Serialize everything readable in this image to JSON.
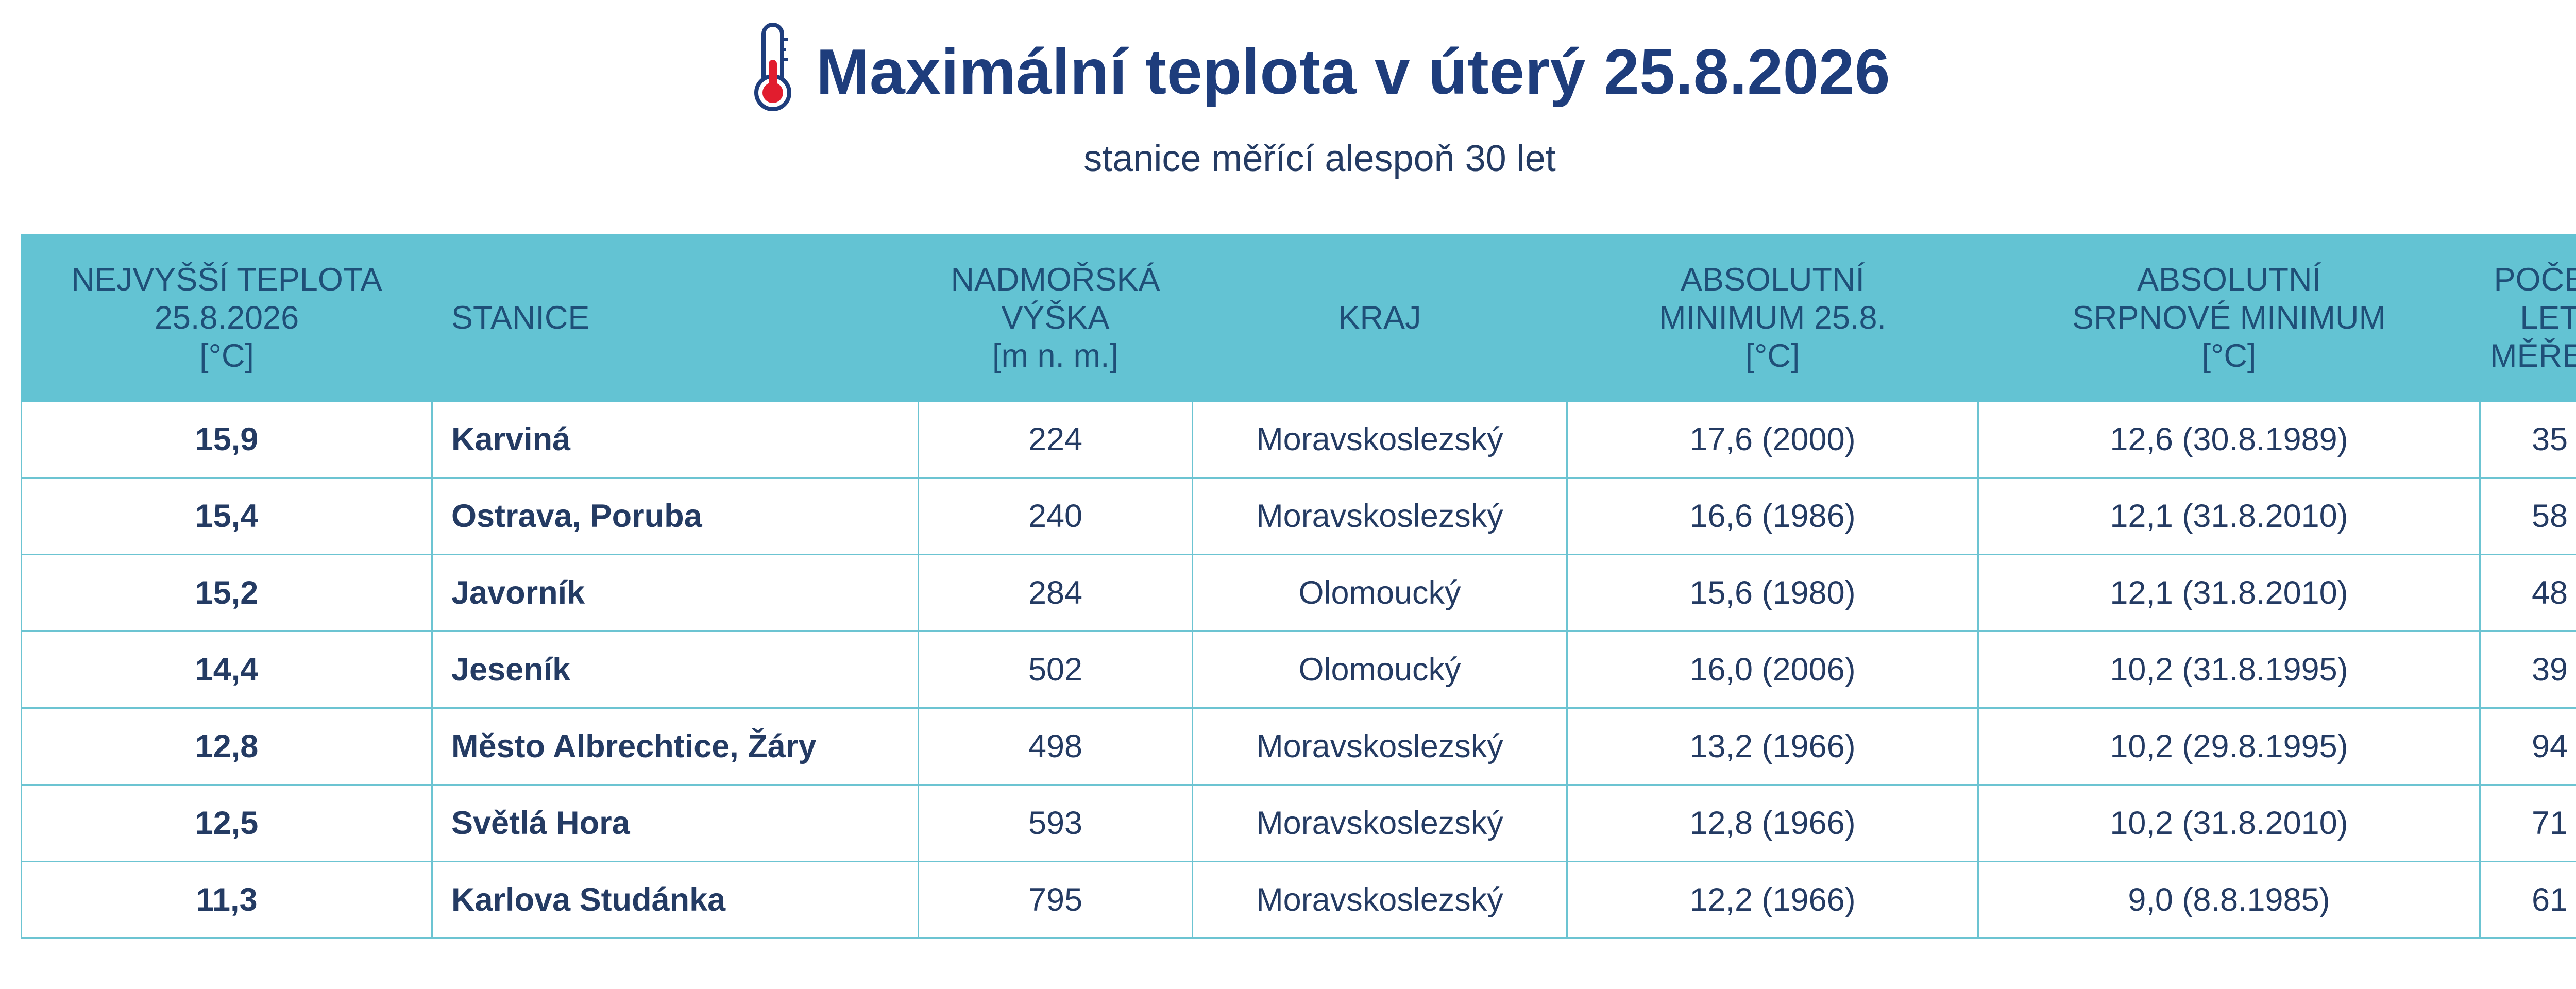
{
  "header": {
    "title": "Maximální teplota v úterý 25.8.2026",
    "subtitle": "stanice měřící alespoň 30 let",
    "icon": "thermometer-icon"
  },
  "table": {
    "headers": [
      [
        "NEJVYŠŠÍ TEPLOTA",
        "25.8.2026",
        "[°C]"
      ],
      [
        "STANICE"
      ],
      [
        "NADMOŘSKÁ",
        "VÝŠKA",
        "[m n. m.]"
      ],
      [
        "KRAJ"
      ],
      [
        "ABSOLUTNÍ",
        "MINIMUM 25.8.",
        "[°C]"
      ],
      [
        "ABSOLUTNÍ",
        "SRPNOVÉ MINIMUM",
        "[°C]"
      ],
      [
        "POČET",
        "LET",
        "MĚŘENÍ"
      ]
    ],
    "rows": [
      [
        "15,9",
        "Karviná",
        "224",
        "Moravskoslezský",
        "17,6 (2000)",
        "12,6 (30.8.1989)",
        "35"
      ],
      [
        "15,4",
        "Ostrava, Poruba",
        "240",
        "Moravskoslezský",
        "16,6 (1986)",
        "12,1 (31.8.2010)",
        "58"
      ],
      [
        "15,2",
        "Javorník",
        "284",
        "Olomoucký",
        "15,6 (1980)",
        "12,1 (31.8.2010)",
        "48"
      ],
      [
        "14,4",
        "Jeseník",
        "502",
        "Olomoucký",
        "16,0 (2006)",
        "10,2 (31.8.1995)",
        "39"
      ],
      [
        "12,8",
        "Město Albrechtice, Žáry",
        "498",
        "Moravskoslezský",
        "13,2 (1966)",
        "10,2 (29.8.1995)",
        "94"
      ],
      [
        "12,5",
        "Světlá Hora",
        "593",
        "Moravskoslezský",
        "12,8 (1966)",
        "10,2 (31.8.2010)",
        "71"
      ],
      [
        "11,3",
        "Karlova Studánka",
        "795",
        "Moravskoslezský",
        "12,2 (1966)",
        "9,0 (8.8.1985)",
        "61"
      ]
    ]
  },
  "colors": {
    "title": "#1e3d7c",
    "text": "#243b63",
    "header_bg": "#63c3d3",
    "header_text": "#1f4f78",
    "grid": "#6cc4d2",
    "thermometer_red": "#e11d2e"
  }
}
